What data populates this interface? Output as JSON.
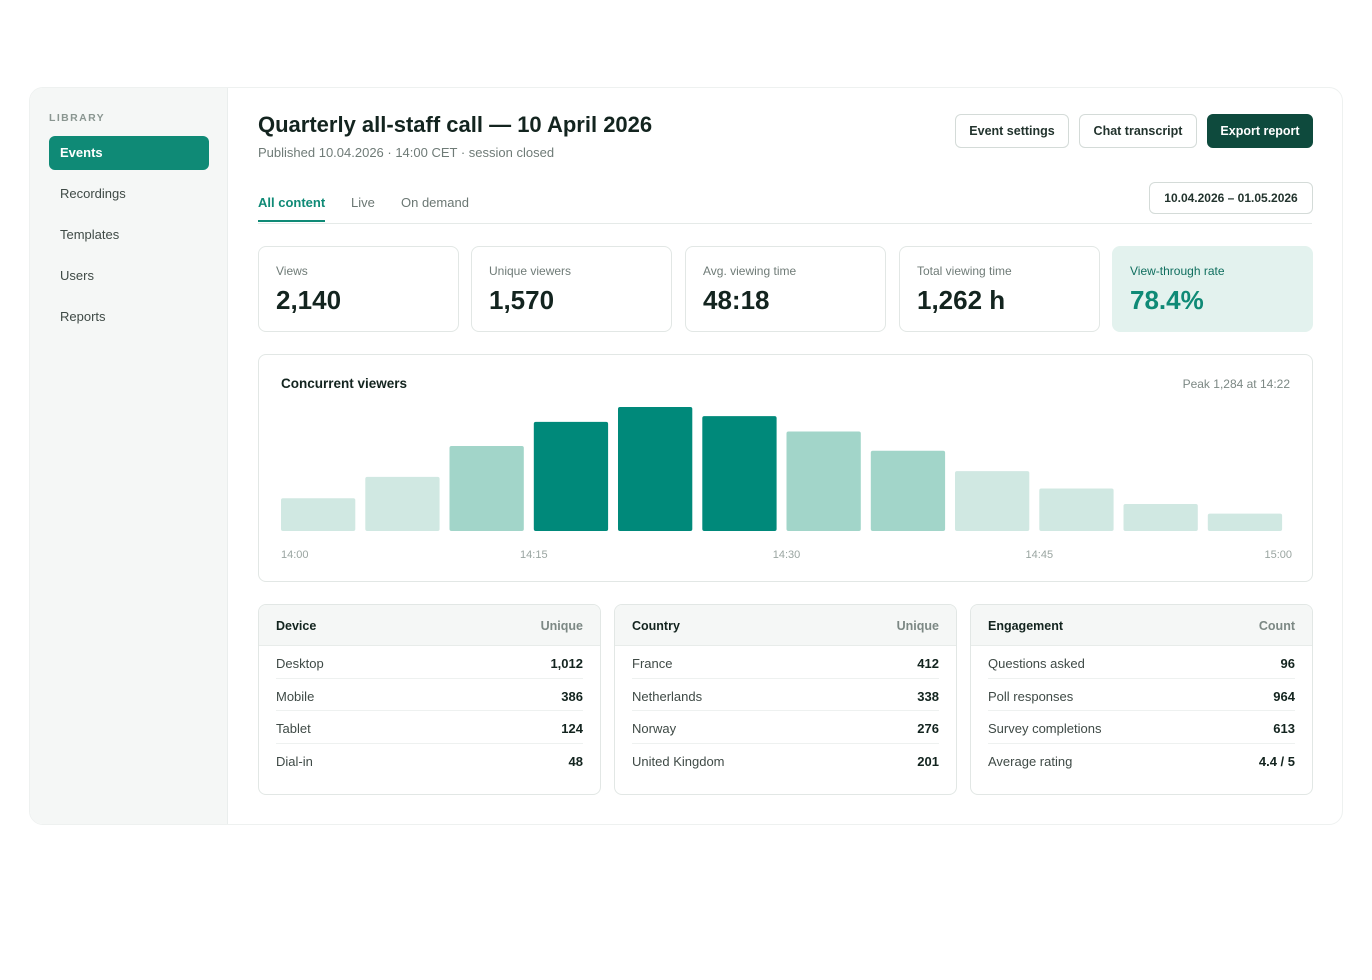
{
  "sidebar": {
    "heading": "LIBRARY",
    "items": [
      {
        "label": "Events",
        "active": true
      },
      {
        "label": "Recordings",
        "active": false
      },
      {
        "label": "Templates",
        "active": false
      },
      {
        "label": "Users",
        "active": false
      },
      {
        "label": "Reports",
        "active": false
      }
    ]
  },
  "header": {
    "title": "Quarterly all-staff call — 10 April 2026",
    "subtitle": "Published 10.04.2026 · 14:00 CET · session closed",
    "buttons": {
      "event_settings": "Event settings",
      "chat_transcript": "Chat transcript",
      "export_report": "Export report"
    }
  },
  "tabs": [
    {
      "label": "All content",
      "active": true
    },
    {
      "label": "Live",
      "active": false
    },
    {
      "label": "On demand",
      "active": false
    }
  ],
  "date_range": "10.04.2026 – 01.05.2026",
  "stats": [
    {
      "label": "Views",
      "value": "2,140"
    },
    {
      "label": "Unique viewers",
      "value": "1,570"
    },
    {
      "label": "Avg. viewing time",
      "value": "48:18"
    },
    {
      "label": "Total viewing time",
      "value": "1,262 h"
    },
    {
      "label": "View-through rate",
      "value": "78.4%",
      "highlight": true
    }
  ],
  "chart": {
    "title": "Concurrent viewers",
    "peak": "Peak 1,284 at 14:22"
  },
  "chart_data": {
    "type": "bar",
    "title": "Concurrent viewers",
    "x_tick_labels": [
      "14:00",
      "14:15",
      "14:30",
      "14:45",
      "15:00"
    ],
    "values": [
      340,
      560,
      880,
      1130,
      1284,
      1190,
      1030,
      830,
      620,
      440,
      280,
      180
    ],
    "intensity": [
      "light",
      "light",
      "medium",
      "dark",
      "dark",
      "dark",
      "medium",
      "medium",
      "light",
      "light",
      "light",
      "light"
    ],
    "ylim": [
      0,
      1284
    ],
    "grid": false,
    "colors": {
      "dark": "#00897a",
      "medium": "#a2d5c9",
      "light": "#d0e8e2"
    }
  },
  "tables": [
    {
      "header_left": "Device",
      "header_right": "Unique",
      "rows": [
        {
          "label": "Desktop",
          "value": "1,012"
        },
        {
          "label": "Mobile",
          "value": "386"
        },
        {
          "label": "Tablet",
          "value": "124"
        },
        {
          "label": "Dial-in",
          "value": "48"
        }
      ]
    },
    {
      "header_left": "Country",
      "header_right": "Unique",
      "rows": [
        {
          "label": "France",
          "value": "412"
        },
        {
          "label": "Netherlands",
          "value": "338"
        },
        {
          "label": "Norway",
          "value": "276"
        },
        {
          "label": "United Kingdom",
          "value": "201"
        }
      ]
    },
    {
      "header_left": "Engagement",
      "header_right": "Count",
      "rows": [
        {
          "label": "Questions asked",
          "value": "96"
        },
        {
          "label": "Poll responses",
          "value": "964"
        },
        {
          "label": "Survey completions",
          "value": "613"
        },
        {
          "label": "Average rating",
          "value": "4.4 / 5"
        }
      ]
    }
  ],
  "colors": {
    "accent": "#0f8a76",
    "primary_button": "#0e4a3d",
    "highlight_card": "#e3f2ee"
  }
}
